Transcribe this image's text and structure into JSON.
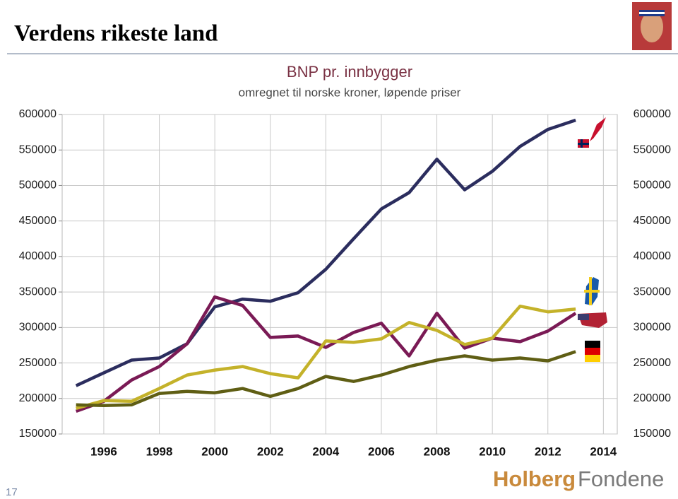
{
  "slide": {
    "title": "Verdens rikeste land",
    "page_number": "17",
    "logo": [
      "Holberg",
      "Fondene"
    ]
  },
  "chart_data": {
    "type": "line",
    "title": "BNP pr. innbygger",
    "subtitle": "omregnet til norske kroner, løpende priser",
    "x": [
      1995,
      1996,
      1997,
      1998,
      1999,
      2000,
      2001,
      2002,
      2003,
      2004,
      2005,
      2006,
      2007,
      2008,
      2009,
      2010,
      2011,
      2012,
      2013
    ],
    "series": [
      {
        "color": "#2b2d5e",
        "values": [
          218000,
          236000,
          254000,
          257000,
          277000,
          329000,
          340000,
          337000,
          349000,
          382000,
          425000,
          467000,
          490000,
          537000,
          494000,
          520000,
          555000,
          579000,
          592000
        ]
      },
      {
        "color": "#7a1a55",
        "values": [
          182000,
          196000,
          226000,
          245000,
          277000,
          343000,
          331000,
          286000,
          288000,
          272000,
          293000,
          306000,
          260000,
          320000,
          271000,
          285000,
          280000,
          295000,
          320000
        ]
      },
      {
        "color": "#c4b22a",
        "values": [
          186000,
          197000,
          196000,
          214000,
          233000,
          240000,
          245000,
          235000,
          229000,
          281000,
          279000,
          284000,
          307000,
          296000,
          276000,
          285000,
          330000,
          322000,
          326000
        ]
      },
      {
        "color": "#5f5e14",
        "values": [
          191000,
          190000,
          191000,
          207000,
          210000,
          208000,
          214000,
          203000,
          214000,
          231000,
          224000,
          233000,
          245000,
          254000,
          260000,
          254000,
          257000,
          253000,
          266000
        ]
      }
    ],
    "xlim": [
      1994.5,
      2014.5
    ],
    "xticks": [
      1996,
      1998,
      2000,
      2002,
      2004,
      2006,
      2008,
      2010,
      2012,
      2014
    ],
    "ylim": [
      150000,
      600000
    ],
    "yticks": [
      150000,
      200000,
      250000,
      300000,
      350000,
      400000,
      450000,
      500000,
      550000,
      600000
    ],
    "grid": true
  }
}
